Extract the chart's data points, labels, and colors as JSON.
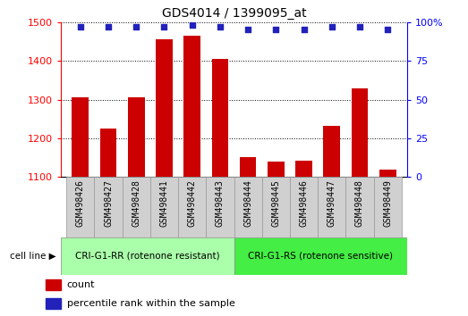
{
  "title": "GDS4014 / 1399095_at",
  "samples": [
    "GSM498426",
    "GSM498427",
    "GSM498428",
    "GSM498441",
    "GSM498442",
    "GSM498443",
    "GSM498444",
    "GSM498445",
    "GSM498446",
    "GSM498447",
    "GSM498448",
    "GSM498449"
  ],
  "counts": [
    1305,
    1225,
    1305,
    1455,
    1465,
    1405,
    1152,
    1140,
    1142,
    1232,
    1330,
    1118
  ],
  "percentile_ranks": [
    97,
    97,
    97,
    97,
    98,
    97,
    95,
    95,
    95,
    97,
    97,
    95
  ],
  "group1_label": "CRI-G1-RR (rotenone resistant)",
  "group2_label": "CRI-G1-RS (rotenone sensitive)",
  "group1_count": 6,
  "group2_count": 6,
  "ylim_left": [
    1100,
    1500
  ],
  "ylim_right": [
    0,
    100
  ],
  "yticks_left": [
    1100,
    1200,
    1300,
    1400,
    1500
  ],
  "yticks_right": [
    0,
    25,
    50,
    75,
    100
  ],
  "bar_color": "#cc0000",
  "dot_color": "#2222bb",
  "group1_bg": "#aaffaa",
  "group2_bg": "#44ee44",
  "xlabel_area_bg": "#d0d0d0",
  "cell_line_label": "cell line",
  "legend_count_label": "count",
  "legend_pct_label": "percentile rank within the sample",
  "bar_width": 0.6,
  "fig_width": 5.23,
  "fig_height": 3.54,
  "dpi": 100
}
